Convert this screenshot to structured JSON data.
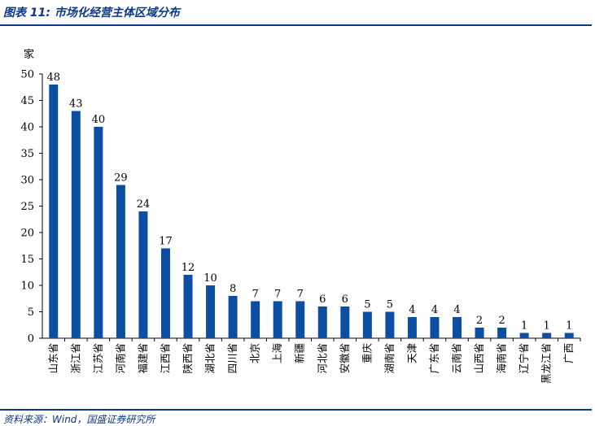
{
  "figure": {
    "title": "图表 11:  市场化经营主体区域分布",
    "source": "资料来源：Wind，国盛证券研究所"
  },
  "colors": {
    "bar": "#0b4ea2",
    "accent": "#0b3a86",
    "axis": "#000000"
  },
  "chart_data": {
    "type": "bar",
    "unit_label": "家",
    "categories": [
      "山东省",
      "浙江省",
      "江苏省",
      "河南省",
      "福建省",
      "江西省",
      "陕西省",
      "湖北省",
      "四川省",
      "北京",
      "上海",
      "新疆",
      "河北省",
      "安徽省",
      "重庆",
      "湖南省",
      "天津",
      "广东省",
      "云南省",
      "山西省",
      "海南省",
      "辽宁省",
      "黑龙江省",
      "广西"
    ],
    "values": [
      48,
      43,
      40,
      29,
      24,
      17,
      12,
      10,
      8,
      7,
      7,
      7,
      6,
      6,
      5,
      5,
      4,
      4,
      4,
      2,
      2,
      1,
      1,
      1
    ],
    "ylim": [
      0,
      50
    ],
    "yticks": [
      0,
      5,
      10,
      15,
      20,
      25,
      30,
      35,
      40,
      45,
      50
    ],
    "grid": false,
    "legend": "none"
  }
}
